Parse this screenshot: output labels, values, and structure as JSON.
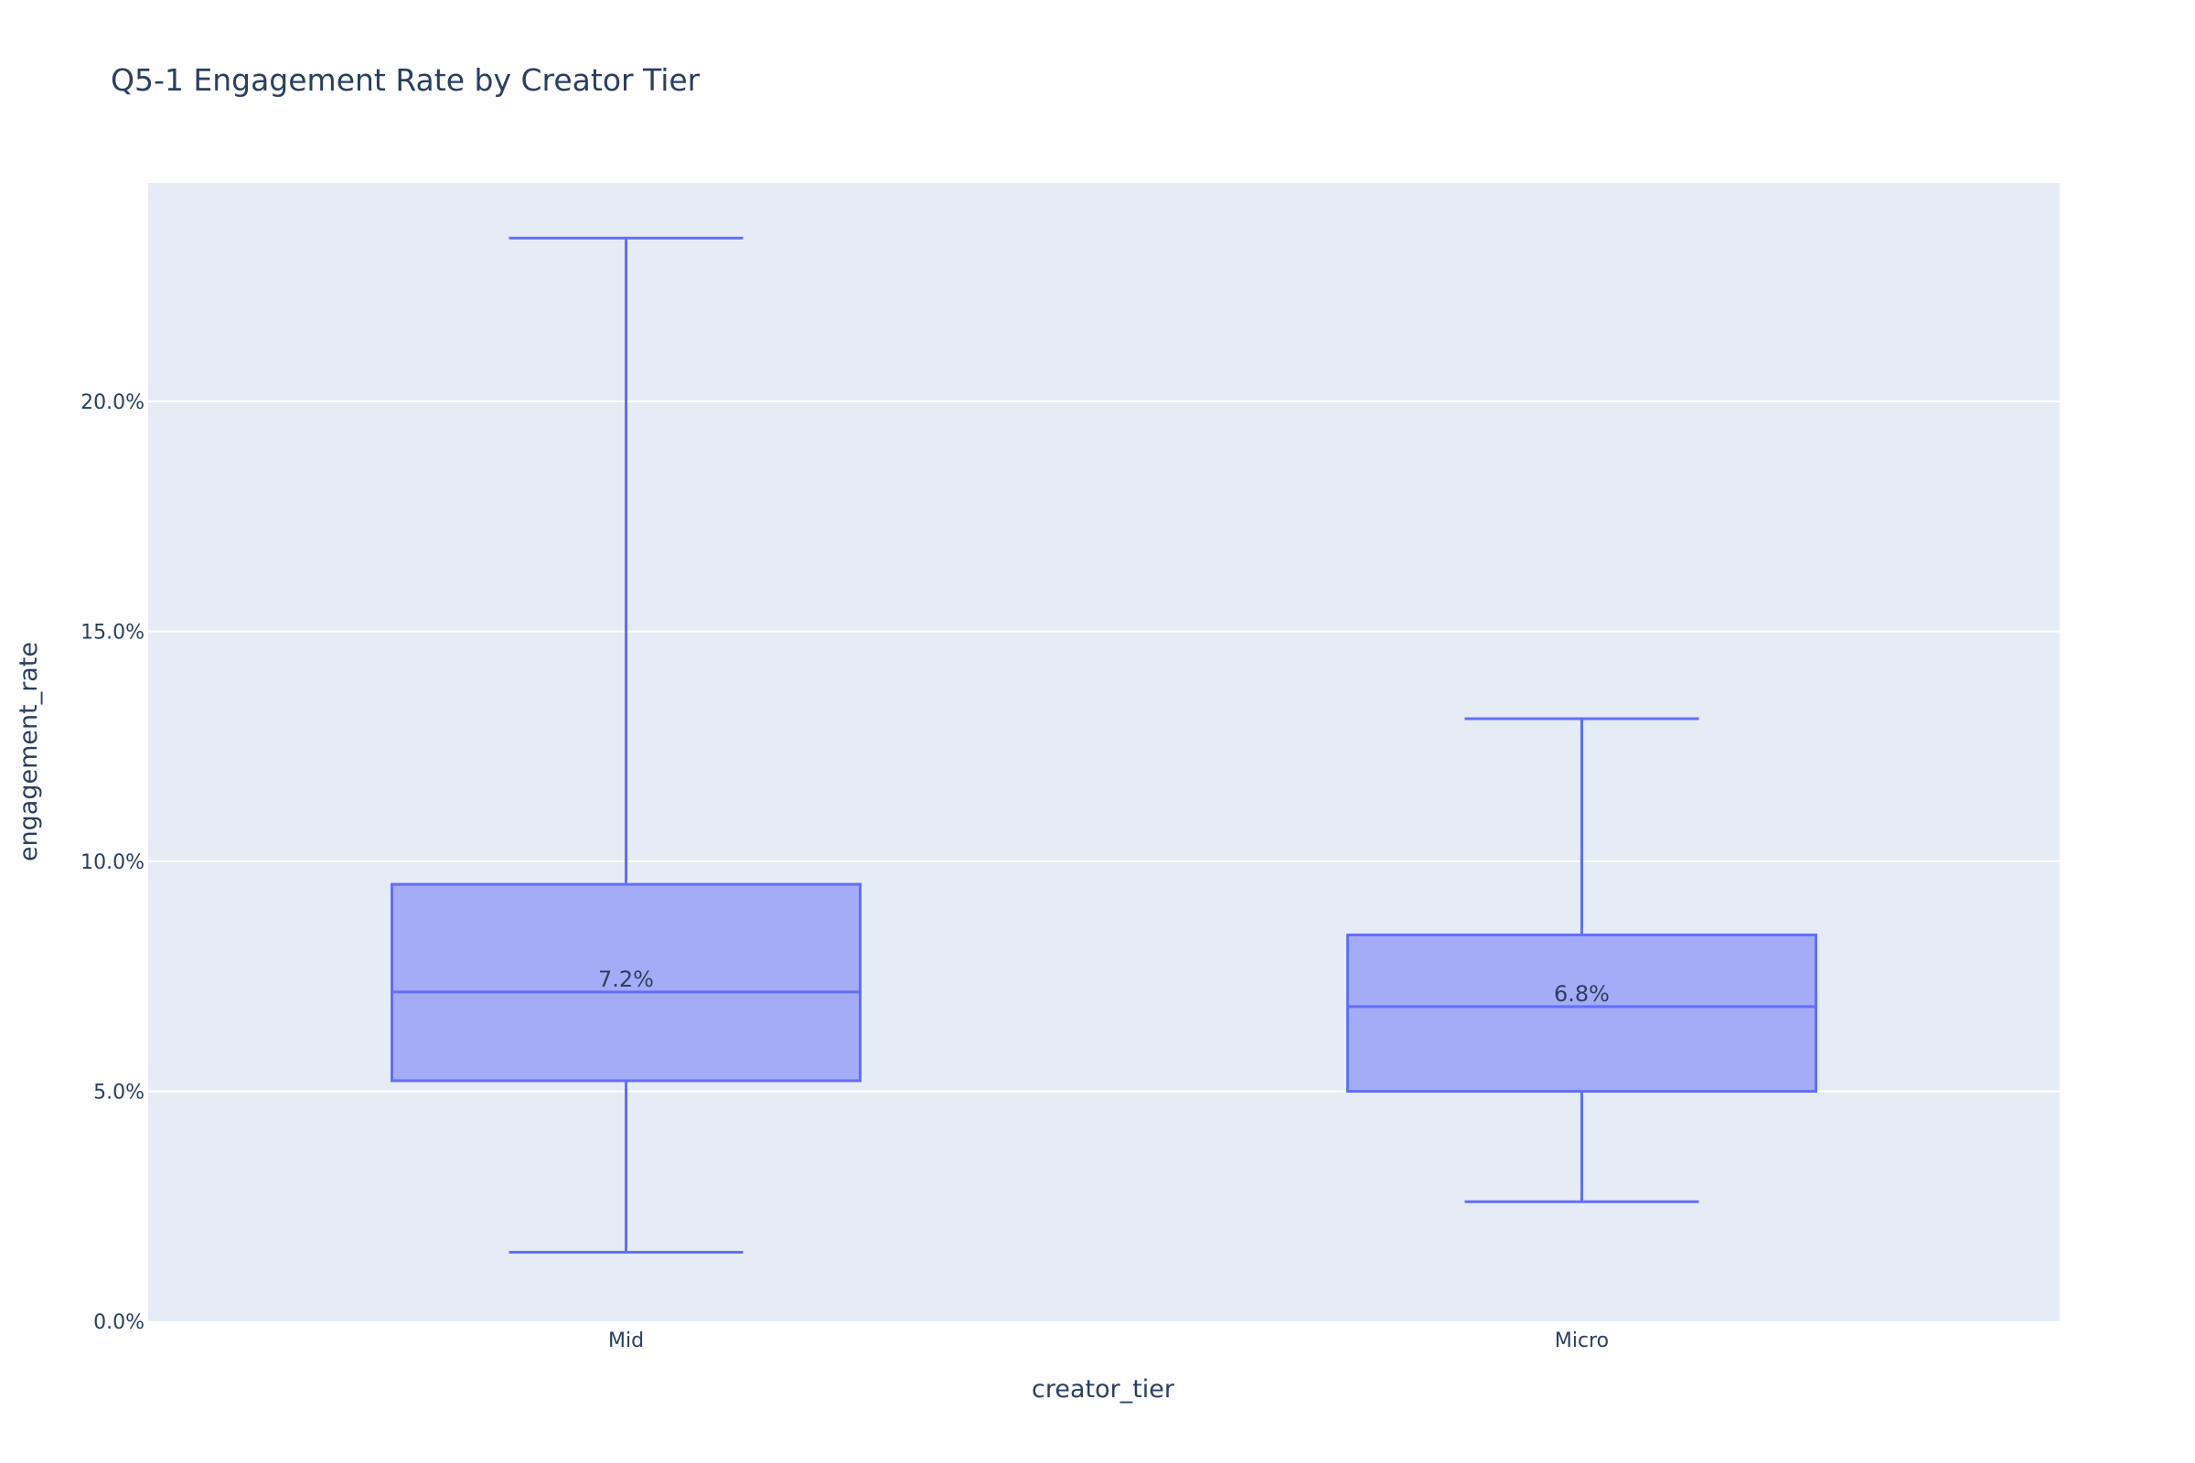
{
  "chart_data": {
    "type": "box",
    "title": "Q5-1 Engagement Rate by Creator Tier",
    "xlabel": "creator_tier",
    "ylabel": "engagement_rate",
    "ylim": [
      0.0,
      0.2475
    ],
    "y_tick_values": [
      0.0,
      0.05,
      0.1,
      0.15,
      0.2
    ],
    "y_tick_labels": [
      "0.0%",
      "5.0%",
      "10.0%",
      "15.0%",
      "20.0%"
    ],
    "grid": true,
    "categories": [
      "Mid",
      "Micro"
    ],
    "boxes": [
      {
        "category": "Mid",
        "min": 0.015,
        "q1": 0.0523,
        "median": 0.0716,
        "q3": 0.095,
        "max": 0.2355,
        "median_label": "7.2%"
      },
      {
        "category": "Micro",
        "min": 0.026,
        "q1": 0.05,
        "median": 0.0684,
        "q3": 0.084,
        "max": 0.131,
        "median_label": "6.8%"
      }
    ],
    "colors": {
      "plot_bg": "#e5ecf6",
      "grid": "#ffffff",
      "box_fill": "#a5acf7",
      "box_line": "#636efa",
      "text": "#2a3f5f"
    }
  }
}
